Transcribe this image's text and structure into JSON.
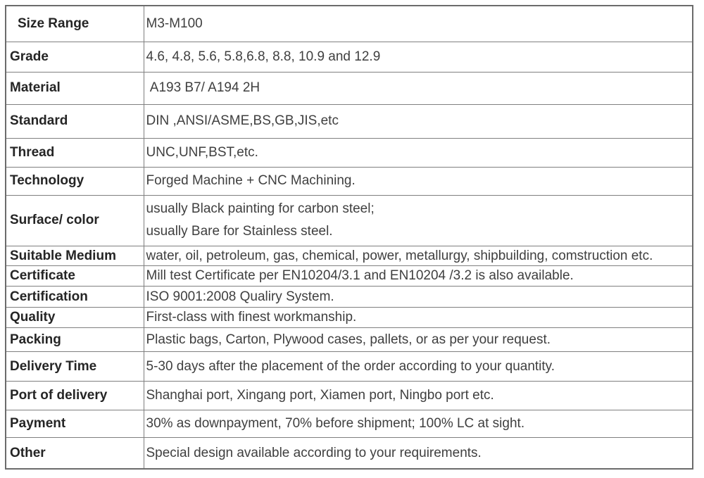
{
  "table": {
    "rows": [
      {
        "label": "Size Range",
        "value": "M3-M100"
      },
      {
        "label": "Grade",
        "value": "4.6, 4.8, 5.6, 5.8,6.8, 8.8, 10.9 and 12.9"
      },
      {
        "label": "Material",
        "value": " A193 B7/ A194 2H"
      },
      {
        "label": "Standard",
        "value": "DIN ,ANSI/ASME,BS,GB,JIS,etc"
      },
      {
        "label": "Thread",
        "value": "UNC,UNF,BST,etc."
      },
      {
        "label": "Technology",
        "value": "Forged Machine + CNC Machining."
      },
      {
        "label": "Surface/ color",
        "value": "usually Black painting for carbon steel;\nusually Bare for Stainless steel."
      },
      {
        "label": "Suitable Medium",
        "value": "water, oil, petroleum, gas, chemical, power, metallurgy, shipbuilding, comstruction etc."
      },
      {
        "label": "Certificate",
        "value": "Mill test Certificate per EN10204/3.1 and EN10204 /3.2 is also available."
      },
      {
        "label": "Certification",
        "value": "ISO 9001:2008 Qualiry System."
      },
      {
        "label": "Quality",
        "value": "First-class with finest workmanship."
      },
      {
        "label": "Packing",
        "value": "Plastic bags, Carton, Plywood cases, pallets, or as per your request."
      },
      {
        "label": "Delivery Time",
        "value": "5-30 days after the placement of the order according to your quantity."
      },
      {
        "label": "Port of delivery",
        "value": "Shanghai port, Xingang port, Xiamen port, Ningbo port etc."
      },
      {
        "label": "Payment",
        "value": "30% as downpayment, 70% before shipment; 100% LC at sight."
      },
      {
        "label": "Other",
        "value": "Special design available according to your requirements."
      }
    ]
  },
  "theme": {
    "border-color": "#7f7f7f",
    "border-outer": "#6b6b6b",
    "label-text": "#252525",
    "value-text": "#3f3f3f",
    "page-bg": "#ffffff"
  }
}
